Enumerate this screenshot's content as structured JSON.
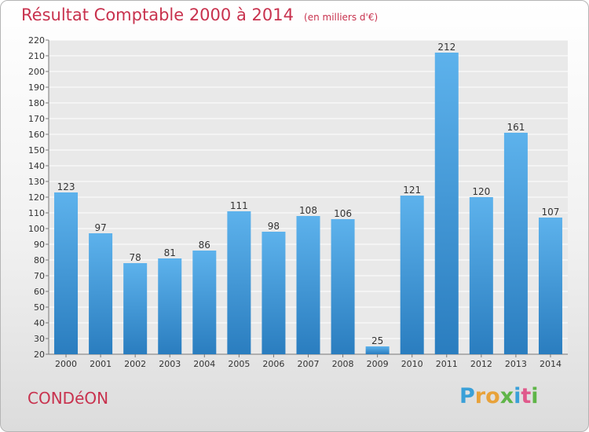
{
  "title": "Résultat Comptable 2000 à 2014",
  "unit": "(en milliers d'€)",
  "commune": "CONDéON",
  "logo": {
    "letters": [
      "P",
      "r",
      "o",
      "x",
      "i",
      "t",
      "i"
    ],
    "colors": [
      "#3aa0d8",
      "#e8a23a",
      "#e8a23a",
      "#5fb548",
      "#3aa0d8",
      "#e05a8c",
      "#5fb548"
    ]
  },
  "chart_data": {
    "type": "bar",
    "categories": [
      "2000",
      "2001",
      "2002",
      "2003",
      "2004",
      "2005",
      "2006",
      "2007",
      "2008",
      "2009",
      "2010",
      "2011",
      "2012",
      "2013",
      "2014"
    ],
    "values": [
      123,
      97,
      78,
      81,
      86,
      111,
      98,
      108,
      106,
      25,
      121,
      212,
      120,
      161,
      107
    ],
    "ylim": [
      20,
      220
    ],
    "ytick_step": 10,
    "grid": true,
    "bar_color": "#4aa3e2",
    "title": "Résultat Comptable 2000 à 2014",
    "xlabel": "",
    "ylabel": ""
  }
}
